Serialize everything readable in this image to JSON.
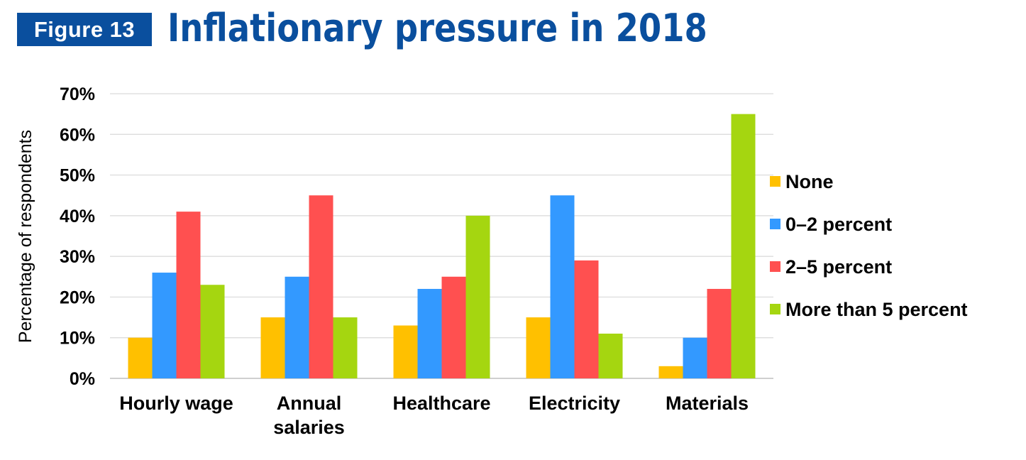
{
  "header": {
    "figure_label": "Figure 13",
    "title": "Inflationary pressure in 2018"
  },
  "chart_data": {
    "type": "bar",
    "title": "Inflationary pressure in 2018",
    "xlabel": "",
    "ylabel": "Percentage of respondents",
    "ylim": [
      0,
      70
    ],
    "yticks": [
      "0%",
      "10%",
      "20%",
      "30%",
      "40%",
      "50%",
      "60%",
      "70%"
    ],
    "grid": true,
    "legend_position": "right",
    "categories": [
      [
        "Hourly wage"
      ],
      [
        "Annual",
        "salaries"
      ],
      [
        "Healthcare"
      ],
      [
        "Electricity"
      ],
      [
        "Materials"
      ]
    ],
    "series": [
      {
        "name": "None",
        "color": "#ffc000",
        "values": [
          10,
          15,
          13,
          15,
          3
        ]
      },
      {
        "name": "0–2 percent",
        "color": "#3399ff",
        "values": [
          26,
          25,
          22,
          45,
          10
        ]
      },
      {
        "name": "2–5 percent",
        "color": "#ff5050",
        "values": [
          41,
          45,
          25,
          29,
          22
        ]
      },
      {
        "name": "More than 5 percent",
        "color": "#a5d610",
        "values": [
          23,
          15,
          40,
          11,
          65
        ]
      }
    ]
  }
}
